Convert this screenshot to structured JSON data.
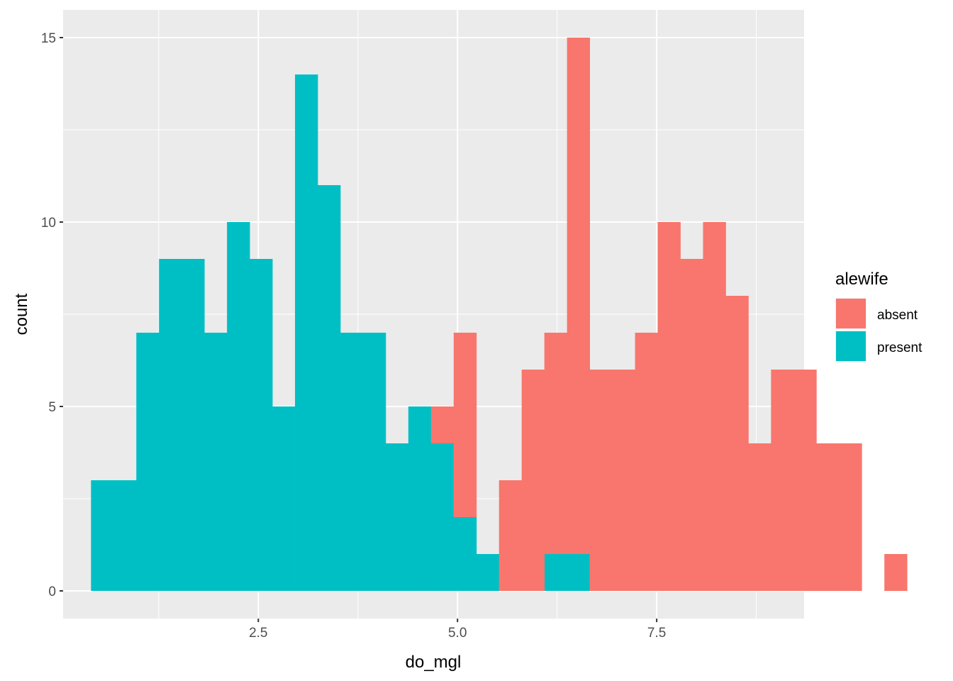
{
  "chart_data": {
    "type": "histogram",
    "position": "stacked",
    "xlabel": "do_mgl",
    "ylabel": "count",
    "xlim": [
      0.05,
      9.35
    ],
    "ylim": [
      -0.75,
      15.75
    ],
    "x_major_ticks": [
      2.5,
      5.0,
      7.5
    ],
    "x_tick_labels": [
      "2.5",
      "5.0",
      "7.5"
    ],
    "x_minor_ticks": [
      1.25,
      3.75,
      6.25,
      8.75
    ],
    "y_major_ticks": [
      0,
      5,
      10,
      15
    ],
    "y_tick_labels": [
      "0",
      "5",
      "10",
      "15"
    ],
    "y_minor_ticks": [
      2.5,
      7.5,
      12.5
    ],
    "grid": true,
    "bin_start": 0.4,
    "bin_width": 0.2845,
    "stack_order": [
      "present",
      "absent"
    ],
    "legend": {
      "title": "alewife",
      "position": "right",
      "entries": [
        {
          "label": "absent",
          "color": "#F8766D"
        },
        {
          "label": "present",
          "color": "#00BFC4"
        }
      ]
    },
    "series": [
      {
        "name": "absent",
        "color": "#F8766D",
        "values": [
          0,
          0,
          0,
          0,
          0,
          0,
          0,
          0,
          0,
          0,
          0,
          0,
          0,
          0,
          0,
          1,
          5,
          0,
          3,
          6,
          6,
          14,
          6,
          6,
          7,
          10,
          9,
          10,
          8,
          4,
          6,
          6,
          4,
          4,
          0,
          1
        ]
      },
      {
        "name": "present",
        "color": "#00BFC4",
        "values": [
          3,
          3,
          7,
          9,
          9,
          7,
          10,
          9,
          5,
          14,
          11,
          7,
          7,
          4,
          5,
          4,
          2,
          1,
          0,
          0,
          1,
          1,
          0,
          0,
          0,
          0,
          0,
          0,
          0,
          0,
          0,
          0,
          0,
          0,
          0,
          0
        ]
      }
    ]
  }
}
